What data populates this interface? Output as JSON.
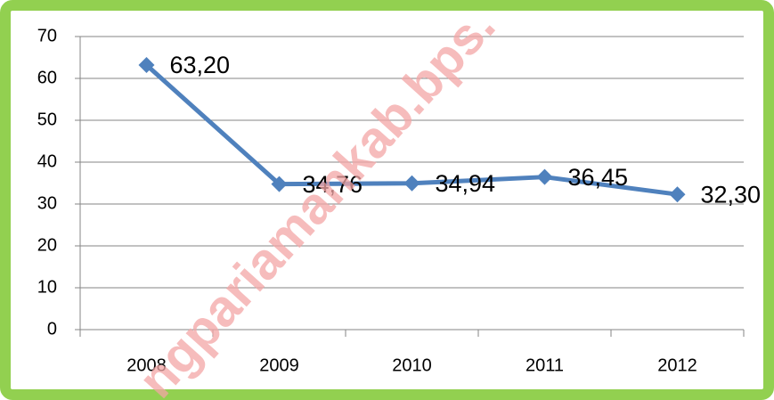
{
  "chart_data": {
    "type": "line",
    "categories": [
      "2008",
      "2009",
      "2010",
      "2011",
      "2012"
    ],
    "series": [
      {
        "name": "",
        "color": "#4f81bd",
        "values": [
          63.2,
          34.76,
          34.94,
          36.45,
          32.3
        ],
        "value_labels": [
          "63,20",
          "34,76",
          "34,94",
          "36,45",
          "32,30"
        ]
      }
    ],
    "ylim": [
      0,
      70
    ],
    "yticks": [
      0,
      10,
      20,
      30,
      40,
      50,
      60,
      70
    ],
    "grid": true,
    "watermark": "ngpariamankab.bps."
  }
}
